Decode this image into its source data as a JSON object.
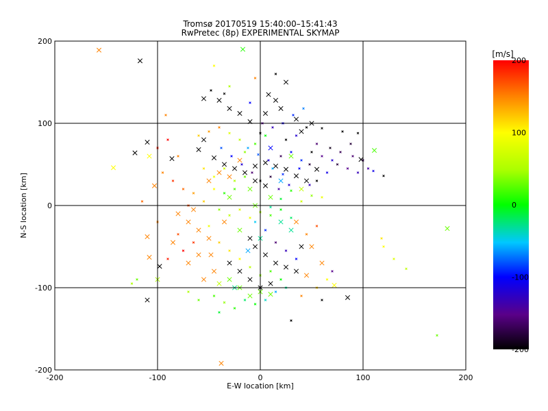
{
  "chart_data": {
    "type": "scatter",
    "title": "Tromsø 20170519 15:40:00–15:41:43",
    "subtitle": "RwPretec (8p) EXPERIMENTAL SKYMAP",
    "xlabel": "E-W location [km]",
    "ylabel": "N-S location [km]",
    "xlim": [
      -200,
      200
    ],
    "ylim": [
      -200,
      200
    ],
    "xticks": [
      "-200",
      "-100",
      "0",
      "100",
      "200"
    ],
    "yticks": [
      "-200",
      "-100",
      "0",
      "100",
      "200"
    ],
    "grid": true,
    "colorbar": {
      "unit": "[m/s]",
      "range": [
        -200,
        200
      ],
      "ticks": [
        "200",
        "100",
        "0",
        "-100",
        "-200"
      ],
      "colormap": "rainbow (black-purple-blue-cyan-green-yellow-orange-red)"
    },
    "markers": {
      "cross": "large x",
      "small": "small dot/cross"
    },
    "series": [
      {
        "marker": "cross",
        "points": [
          [
            -157,
            189,
            150
          ],
          [
            -117,
            176,
            -200
          ],
          [
            -17,
            190,
            10
          ],
          [
            -122,
            64,
            -200
          ],
          [
            -143,
            46,
            100
          ],
          [
            -110,
            77,
            -200
          ],
          [
            -108,
            60,
            100
          ],
          [
            -103,
            24,
            150
          ],
          [
            -110,
            -38,
            150
          ],
          [
            -108,
            -63,
            150
          ],
          [
            -98,
            -74,
            -200
          ],
          [
            -110,
            -115,
            -200
          ],
          [
            -38,
            -192,
            150
          ],
          [
            85,
            -112,
            -200
          ],
          [
            182,
            -28,
            30
          ],
          [
            72,
            -97,
            100
          ],
          [
            111,
            67,
            20
          ],
          [
            98,
            56,
            -200
          ],
          [
            -86,
            57,
            -200
          ],
          [
            -100,
            -90,
            50
          ],
          [
            -55,
            130,
            -200
          ],
          [
            -40,
            128,
            -200
          ],
          [
            -30,
            118,
            -200
          ],
          [
            -20,
            112,
            -200
          ],
          [
            -10,
            102,
            -200
          ],
          [
            5,
            112,
            -200
          ],
          [
            8,
            135,
            -200
          ],
          [
            15,
            128,
            -200
          ],
          [
            20,
            118,
            -200
          ],
          [
            25,
            150,
            -200
          ],
          [
            35,
            105,
            -200
          ],
          [
            40,
            90,
            -200
          ],
          [
            50,
            100,
            -200
          ],
          [
            -55,
            80,
            -200
          ],
          [
            -60,
            68,
            -200
          ],
          [
            -45,
            58,
            -200
          ],
          [
            -35,
            50,
            -200
          ],
          [
            -25,
            45,
            -200
          ],
          [
            -15,
            40,
            -200
          ],
          [
            -5,
            48,
            -200
          ],
          [
            5,
            52,
            -200
          ],
          [
            15,
            48,
            -200
          ],
          [
            25,
            44,
            -200
          ],
          [
            35,
            36,
            -200
          ],
          [
            45,
            30,
            -200
          ],
          [
            55,
            44,
            -200
          ],
          [
            -5,
            30,
            -200
          ],
          [
            5,
            24,
            -200
          ],
          [
            -10,
            -40,
            -200
          ],
          [
            -5,
            -50,
            -200
          ],
          [
            5,
            -60,
            -200
          ],
          [
            15,
            -70,
            -200
          ],
          [
            25,
            -75,
            -200
          ],
          [
            35,
            -80,
            -200
          ],
          [
            -20,
            -80,
            -200
          ],
          [
            -10,
            -90,
            -200
          ],
          [
            0,
            -100,
            -200
          ],
          [
            10,
            -95,
            -200
          ],
          [
            -30,
            -70,
            -200
          ],
          [
            40,
            -50,
            -200
          ],
          [
            -80,
            -10,
            150
          ],
          [
            -70,
            -20,
            150
          ],
          [
            -60,
            -30,
            150
          ],
          [
            -50,
            -40,
            150
          ],
          [
            -60,
            -60,
            150
          ],
          [
            -70,
            -70,
            150
          ],
          [
            -55,
            -90,
            150
          ],
          [
            -45,
            -80,
            150
          ],
          [
            -40,
            40,
            150
          ],
          [
            -30,
            35,
            150
          ],
          [
            -20,
            55,
            150
          ],
          [
            -50,
            30,
            150
          ],
          [
            -35,
            -20,
            150
          ],
          [
            -65,
            -5,
            150
          ],
          [
            50,
            -50,
            150
          ],
          [
            60,
            -70,
            150
          ],
          [
            45,
            -85,
            150
          ],
          [
            35,
            -20,
            150
          ],
          [
            -85,
            -45,
            150
          ],
          [
            -48,
            -60,
            150
          ],
          [
            -30,
            -90,
            30
          ],
          [
            -20,
            -100,
            30
          ],
          [
            -10,
            -110,
            30
          ],
          [
            0,
            -105,
            30
          ],
          [
            10,
            -108,
            30
          ],
          [
            -40,
            -95,
            60
          ],
          [
            20,
            -20,
            -30
          ],
          [
            30,
            -30,
            -30
          ],
          [
            -20,
            -30,
            30
          ],
          [
            -10,
            20,
            30
          ],
          [
            10,
            10,
            30
          ],
          [
            20,
            30,
            -60
          ],
          [
            -30,
            10,
            30
          ],
          [
            40,
            20,
            60
          ],
          [
            30,
            60,
            30
          ],
          [
            10,
            70,
            -100
          ],
          [
            -25,
            -100,
            -30
          ],
          [
            -12,
            -55,
            -60
          ],
          [
            0,
            -40,
            -30
          ],
          [
            -5,
            0,
            30
          ]
        ]
      },
      {
        "marker": "small",
        "points": [
          [
            -45,
            170,
            100
          ],
          [
            -48,
            140,
            -200
          ],
          [
            -30,
            145,
            50
          ],
          [
            -5,
            155,
            150
          ],
          [
            15,
            160,
            -200
          ],
          [
            0,
            88,
            -200
          ],
          [
            60,
            94,
            -200
          ],
          [
            80,
            90,
            -200
          ],
          [
            -35,
            136,
            -200
          ],
          [
            -10,
            125,
            -100
          ],
          [
            25,
            80,
            -200
          ],
          [
            35,
            85,
            -120
          ],
          [
            45,
            95,
            -200
          ],
          [
            55,
            75,
            -160
          ],
          [
            60,
            60,
            -150
          ],
          [
            70,
            55,
            -120
          ],
          [
            75,
            50,
            -180
          ],
          [
            85,
            45,
            -150
          ],
          [
            90,
            60,
            -160
          ],
          [
            95,
            40,
            -130
          ],
          [
            100,
            55,
            -170
          ],
          [
            105,
            45,
            -140
          ],
          [
            65,
            40,
            -110
          ],
          [
            55,
            30,
            -200
          ],
          [
            48,
            25,
            -130
          ],
          [
            40,
            55,
            -90
          ],
          [
            30,
            65,
            -100
          ],
          [
            20,
            60,
            -170
          ],
          [
            12,
            45,
            -60
          ],
          [
            22,
            38,
            -90
          ],
          [
            8,
            55,
            -120
          ],
          [
            -2,
            62,
            -80
          ],
          [
            -12,
            70,
            -60
          ],
          [
            50,
            65,
            -200
          ],
          [
            68,
            70,
            -190
          ],
          [
            78,
            65,
            -170
          ],
          [
            88,
            75,
            -180
          ],
          [
            95,
            88,
            -200
          ],
          [
            110,
            42,
            -110
          ],
          [
            120,
            36,
            -200
          ],
          [
            -95,
            40,
            150
          ],
          [
            -85,
            30,
            180
          ],
          [
            -75,
            20,
            160
          ],
          [
            -65,
            15,
            140
          ],
          [
            -55,
            5,
            120
          ],
          [
            -45,
            20,
            100
          ],
          [
            -70,
            0,
            170
          ],
          [
            -80,
            60,
            150
          ],
          [
            -90,
            80,
            200
          ],
          [
            -100,
            70,
            190
          ],
          [
            -60,
            85,
            120
          ],
          [
            -50,
            90,
            140
          ],
          [
            -40,
            95,
            150
          ],
          [
            -30,
            88,
            80
          ],
          [
            -20,
            80,
            60
          ],
          [
            -15,
            65,
            40
          ],
          [
            -5,
            75,
            20
          ],
          [
            5,
            85,
            0
          ],
          [
            -25,
            20,
            20
          ],
          [
            -35,
            15,
            10
          ],
          [
            -40,
            -5,
            40
          ],
          [
            -30,
            -12,
            60
          ],
          [
            -20,
            -5,
            80
          ],
          [
            -10,
            -15,
            90
          ],
          [
            0,
            -8,
            50
          ],
          [
            10,
            -12,
            20
          ],
          [
            20,
            -5,
            0
          ],
          [
            30,
            -15,
            -20
          ],
          [
            -50,
            -25,
            90
          ],
          [
            -40,
            -45,
            120
          ],
          [
            -30,
            -55,
            110
          ],
          [
            -20,
            -65,
            100
          ],
          [
            -10,
            -75,
            60
          ],
          [
            0,
            -85,
            40
          ],
          [
            10,
            -80,
            20
          ],
          [
            20,
            -90,
            0
          ],
          [
            -65,
            -45,
            180
          ],
          [
            -75,
            -55,
            200
          ],
          [
            -80,
            -35,
            170
          ],
          [
            -90,
            -65,
            190
          ],
          [
            -45,
            -110,
            20
          ],
          [
            -35,
            -118,
            40
          ],
          [
            -25,
            -125,
            10
          ],
          [
            -15,
            -115,
            -20
          ],
          [
            -5,
            -120,
            0
          ],
          [
            5,
            -115,
            -40
          ],
          [
            15,
            -105,
            -60
          ],
          [
            25,
            -100,
            -30
          ],
          [
            -40,
            -130,
            -10
          ],
          [
            40,
            -110,
            150
          ],
          [
            55,
            -100,
            120
          ],
          [
            65,
            -90,
            100
          ],
          [
            30,
            -140,
            -200
          ],
          [
            -60,
            -115,
            30
          ],
          [
            -70,
            -105,
            50
          ],
          [
            130,
            -65,
            80
          ],
          [
            142,
            -77,
            60
          ],
          [
            118,
            -40,
            110
          ],
          [
            120,
            -50,
            100
          ],
          [
            172,
            -158,
            30
          ],
          [
            60,
            -115,
            -200
          ],
          [
            70,
            -80,
            -150
          ],
          [
            35,
            -65,
            -100
          ],
          [
            25,
            -55,
            -130
          ],
          [
            15,
            -45,
            -160
          ],
          [
            5,
            -30,
            -90
          ],
          [
            -5,
            -20,
            -50
          ],
          [
            45,
            -35,
            150
          ],
          [
            55,
            -25,
            170
          ],
          [
            40,
            5,
            70
          ],
          [
            50,
            12,
            40
          ],
          [
            30,
            18,
            10
          ],
          [
            20,
            8,
            -10
          ],
          [
            10,
            -2,
            -30
          ],
          [
            60,
            10,
            90
          ],
          [
            -15,
            35,
            30
          ],
          [
            -25,
            30,
            50
          ],
          [
            -35,
            45,
            70
          ],
          [
            -45,
            35,
            90
          ],
          [
            -55,
            45,
            110
          ],
          [
            0,
            30,
            -200
          ],
          [
            10,
            35,
            -180
          ],
          [
            -8,
            40,
            -160
          ],
          [
            18,
            20,
            -140
          ],
          [
            28,
            25,
            -120
          ],
          [
            38,
            45,
            -100
          ],
          [
            48,
            50,
            -180
          ],
          [
            -18,
            50,
            -120
          ],
          [
            -28,
            60,
            -100
          ],
          [
            -38,
            70,
            -80
          ],
          [
            2,
            100,
            -150
          ],
          [
            12,
            95,
            -130
          ],
          [
            22,
            100,
            -110
          ],
          [
            32,
            110,
            -90
          ],
          [
            42,
            118,
            -70
          ],
          [
            -100,
            -20,
            150
          ],
          [
            -120,
            -90,
            30
          ],
          [
            -125,
            -95,
            50
          ],
          [
            -92,
            110,
            150
          ],
          [
            -115,
            5,
            160
          ]
        ]
      }
    ]
  }
}
